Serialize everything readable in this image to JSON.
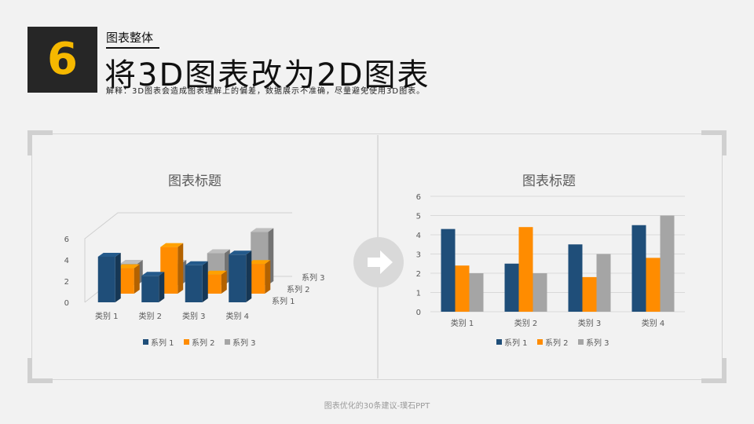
{
  "header": {
    "number": "6",
    "subtitle": "图表整体",
    "title": "将3D图表改为2D图表",
    "description": "解释：3D图表会造成图表理解上的偏差，数据展示不准确，尽量避免使用3D图表。"
  },
  "footer": "图表优化的30条建议-璞石PPT",
  "icons": {
    "arrow": "arrow-right-icon"
  },
  "colors": {
    "series1": "#1f4e79",
    "series2": "#ff8c00",
    "series3": "#a5a5a5",
    "accent": "#f5b800"
  },
  "chart_data": [
    {
      "type": "bar",
      "subtype": "3d-clustered-column",
      "title": "图表标题",
      "categories": [
        "类别 1",
        "类别 2",
        "类别 3",
        "类别 4"
      ],
      "series": [
        {
          "name": "系列 1",
          "values": [
            4.3,
            2.5,
            3.5,
            4.5
          ]
        },
        {
          "name": "系列 2",
          "values": [
            2.4,
            4.4,
            1.8,
            2.8
          ]
        },
        {
          "name": "系列 3",
          "values": [
            2.0,
            2.0,
            3.0,
            5.0
          ]
        }
      ],
      "y_ticks": [
        "0",
        "2",
        "4",
        "6"
      ],
      "depth_labels": [
        "系列 3",
        "系列 2",
        "系列 1"
      ],
      "legend": "bottom"
    },
    {
      "type": "bar",
      "title": "图表标题",
      "categories": [
        "类别 1",
        "类别 2",
        "类别 3",
        "类别 4"
      ],
      "series": [
        {
          "name": "系列 1",
          "values": [
            4.3,
            2.5,
            3.5,
            4.5
          ]
        },
        {
          "name": "系列 2",
          "values": [
            2.4,
            4.4,
            1.8,
            2.8
          ]
        },
        {
          "name": "系列 3",
          "values": [
            2.0,
            2.0,
            3.0,
            5.0
          ]
        }
      ],
      "ylim": [
        0,
        6
      ],
      "y_ticks": [
        "0",
        "1",
        "2",
        "3",
        "4",
        "5",
        "6"
      ],
      "grid": true,
      "legend": "bottom"
    }
  ]
}
